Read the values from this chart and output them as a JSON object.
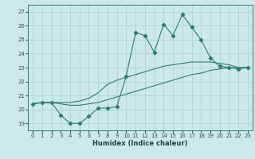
{
  "xlabel": "Humidex (Indice chaleur)",
  "bg_color": "#cce8e8",
  "grid_color": "#aad4d4",
  "line_color": "#2e7d6e",
  "xlim": [
    -0.5,
    23.5
  ],
  "ylim": [
    18.5,
    27.5
  ],
  "xticks": [
    0,
    1,
    2,
    3,
    4,
    5,
    6,
    7,
    8,
    9,
    10,
    11,
    12,
    13,
    14,
    15,
    16,
    17,
    18,
    19,
    20,
    21,
    22,
    23
  ],
  "yticks": [
    19,
    20,
    21,
    22,
    23,
    24,
    25,
    26,
    27
  ],
  "line1_x": [
    0,
    1,
    2,
    3,
    4,
    5,
    6,
    7,
    8,
    9,
    10,
    11,
    12,
    13,
    14,
    15,
    16,
    17,
    18,
    19,
    20,
    21,
    22,
    23
  ],
  "line1_y": [
    20.4,
    20.5,
    20.5,
    19.6,
    19.0,
    19.0,
    19.5,
    20.1,
    20.1,
    20.2,
    22.4,
    25.5,
    25.3,
    24.1,
    26.1,
    25.3,
    26.8,
    25.9,
    25.0,
    23.7,
    23.1,
    23.0,
    22.9,
    23.0
  ],
  "line2_x": [
    0,
    1,
    2,
    3,
    4,
    5,
    6,
    7,
    8,
    9,
    10,
    11,
    12,
    13,
    14,
    15,
    16,
    17,
    18,
    19,
    20,
    21,
    22,
    23
  ],
  "line2_y": [
    20.4,
    20.5,
    20.5,
    20.5,
    20.5,
    20.6,
    20.8,
    21.2,
    21.8,
    22.1,
    22.3,
    22.5,
    22.7,
    22.9,
    23.1,
    23.2,
    23.3,
    23.4,
    23.4,
    23.4,
    23.3,
    23.2,
    23.0,
    23.0
  ],
  "line3_x": [
    0,
    1,
    2,
    3,
    4,
    5,
    6,
    7,
    8,
    9,
    10,
    11,
    12,
    13,
    14,
    15,
    16,
    17,
    18,
    19,
    20,
    21,
    22,
    23
  ],
  "line3_y": [
    20.4,
    20.5,
    20.5,
    20.4,
    20.3,
    20.3,
    20.4,
    20.5,
    20.7,
    20.9,
    21.1,
    21.3,
    21.5,
    21.7,
    21.9,
    22.1,
    22.3,
    22.5,
    22.6,
    22.8,
    22.9,
    23.0,
    23.0,
    23.0
  ]
}
